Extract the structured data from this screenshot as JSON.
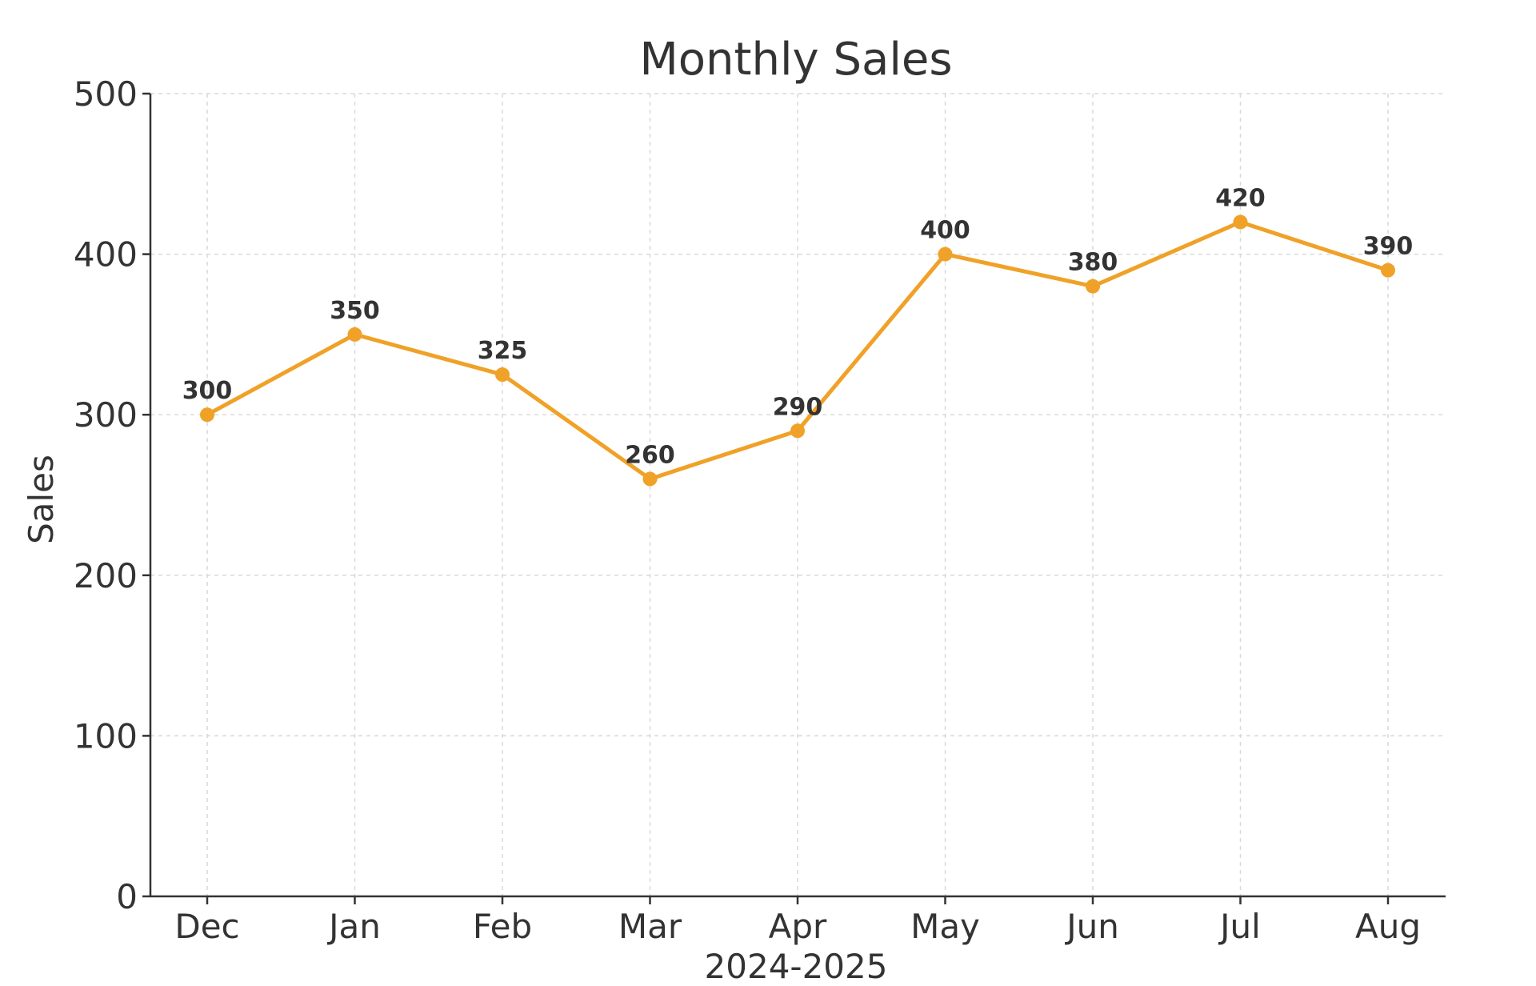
{
  "chart_data": {
    "type": "line",
    "title": "Monthly Sales",
    "xlabel": "2024-2025",
    "ylabel": "Sales",
    "categories": [
      "Dec",
      "Jan",
      "Feb",
      "Mar",
      "Apr",
      "May",
      "Jun",
      "Jul",
      "Aug"
    ],
    "series": [
      {
        "values": [
          300,
          350,
          325,
          260,
          290,
          400,
          380,
          420,
          390
        ],
        "color": "#F0A127"
      }
    ],
    "ylim": [
      0,
      500
    ],
    "yticks": [
      0,
      100,
      200,
      300,
      400,
      500
    ],
    "ytick_labels": [
      "0",
      "100",
      "200",
      "300",
      "400",
      "500"
    ],
    "data_labels": [
      "300",
      "350",
      "325",
      "260",
      "290",
      "400",
      "380",
      "420",
      "390"
    ],
    "grid": true,
    "markers": true
  }
}
